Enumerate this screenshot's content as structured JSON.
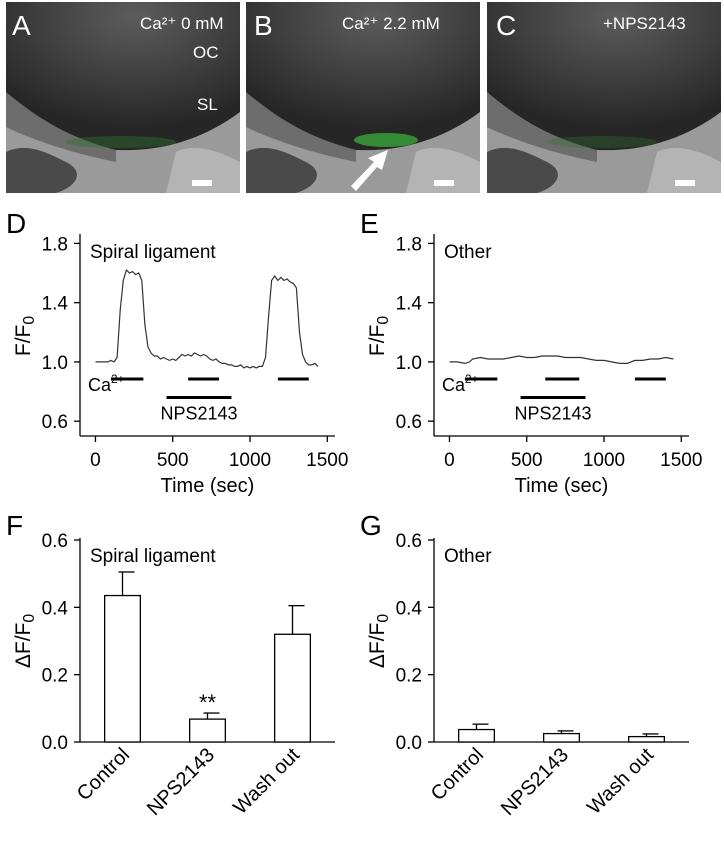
{
  "panels": {
    "A": {
      "letter": "A",
      "condition": "Ca²⁺ 0 mM",
      "label_oc": "OC",
      "label_sl": "SL"
    },
    "B": {
      "letter": "B",
      "condition": "Ca²⁺ 2.2 mM"
    },
    "C": {
      "letter": "C",
      "condition": "+NPS2143"
    },
    "D": {
      "letter": "D"
    },
    "E": {
      "letter": "E"
    },
    "F": {
      "letter": "F"
    },
    "G": {
      "letter": "G"
    }
  },
  "colors": {
    "line": "#333333",
    "green": "#3fcf3f",
    "bar_fill": "#ffffff"
  },
  "chart_data": [
    {
      "id": "D",
      "type": "line",
      "title": "Spiral ligament",
      "xlabel": "Time (sec)",
      "ylabel": "F/F0",
      "xlim": [
        -100,
        1550
      ],
      "ylim": [
        0.5,
        1.85
      ],
      "xticks": [
        0,
        500,
        1000,
        1500
      ],
      "yticks": [
        0.6,
        1.0,
        1.4,
        1.8
      ],
      "ytick_labels": [
        "0.6",
        "1.0",
        "1.4",
        "1.8"
      ],
      "x": [
        0,
        40,
        80,
        100,
        120,
        140,
        160,
        180,
        200,
        220,
        240,
        260,
        280,
        300,
        320,
        340,
        360,
        380,
        400,
        420,
        440,
        460,
        480,
        500,
        520,
        540,
        560,
        580,
        600,
        620,
        640,
        660,
        680,
        700,
        720,
        740,
        760,
        780,
        800,
        820,
        840,
        860,
        880,
        900,
        920,
        940,
        960,
        980,
        1000,
        1020,
        1040,
        1060,
        1080,
        1100,
        1120,
        1140,
        1160,
        1180,
        1200,
        1220,
        1240,
        1260,
        1280,
        1300,
        1320,
        1340,
        1360,
        1380,
        1400,
        1420,
        1440
      ],
      "y": [
        1.0,
        1.0,
        1.0,
        1.01,
        1.0,
        1.03,
        1.35,
        1.55,
        1.62,
        1.6,
        1.61,
        1.59,
        1.6,
        1.55,
        1.25,
        1.1,
        1.06,
        1.04,
        1.04,
        1.02,
        1.03,
        1.02,
        1.01,
        1.02,
        1.01,
        1.03,
        1.05,
        1.04,
        1.05,
        1.04,
        1.06,
        1.05,
        1.04,
        1.05,
        1.04,
        1.02,
        1.01,
        1.02,
        1.0,
        0.99,
        0.99,
        0.98,
        0.98,
        0.97,
        0.97,
        0.98,
        0.96,
        0.97,
        0.96,
        0.97,
        0.96,
        0.97,
        0.97,
        1.03,
        1.3,
        1.55,
        1.58,
        1.55,
        1.57,
        1.55,
        1.56,
        1.54,
        1.53,
        1.5,
        1.2,
        1.05,
        1.0,
        0.98,
        0.98,
        0.99,
        0.97
      ],
      "stimulus_label": "Ca2+",
      "drug_label": "NPS2143",
      "ca_bars": [
        [
          100,
          310
        ],
        [
          600,
          800
        ],
        [
          1180,
          1380
        ]
      ],
      "drug_bar": [
        460,
        880
      ]
    },
    {
      "id": "E",
      "type": "line",
      "title": "Other",
      "xlabel": "Time (sec)",
      "ylabel": "F/F0",
      "xlim": [
        -100,
        1550
      ],
      "ylim": [
        0.5,
        1.85
      ],
      "xticks": [
        0,
        500,
        1000,
        1500
      ],
      "yticks": [
        0.6,
        1.0,
        1.4,
        1.8
      ],
      "ytick_labels": [
        "0.6",
        "1.0",
        "1.4",
        "1.8"
      ],
      "x": [
        0,
        50,
        100,
        130,
        150,
        200,
        250,
        300,
        350,
        400,
        450,
        500,
        550,
        600,
        650,
        700,
        750,
        800,
        850,
        900,
        950,
        1000,
        1050,
        1100,
        1150,
        1200,
        1250,
        1300,
        1350,
        1400,
        1450
      ],
      "y": [
        1.0,
        1.0,
        0.99,
        1.0,
        1.02,
        1.03,
        1.02,
        1.02,
        1.02,
        1.03,
        1.04,
        1.03,
        1.03,
        1.04,
        1.04,
        1.04,
        1.03,
        1.03,
        1.03,
        1.02,
        1.01,
        1.01,
        1.0,
        0.99,
        0.99,
        1.01,
        1.01,
        1.02,
        1.02,
        1.03,
        1.02
      ],
      "stimulus_label": "Ca2+",
      "drug_label": "NPS2143",
      "ca_bars": [
        [
          100,
          310
        ],
        [
          620,
          840
        ],
        [
          1200,
          1400
        ]
      ],
      "drug_bar": [
        460,
        880
      ]
    },
    {
      "id": "F",
      "type": "bar",
      "title": "Spiral ligament",
      "ylabel": "ΔF/F0",
      "ylim": [
        0,
        0.6
      ],
      "yticks": [
        0.0,
        0.2,
        0.4,
        0.6
      ],
      "ytick_labels": [
        "0.0",
        "0.2",
        "0.4",
        "0.6"
      ],
      "categories": [
        "Control",
        "NPS2143",
        "Wash out"
      ],
      "values": [
        0.435,
        0.068,
        0.32
      ],
      "errors": [
        0.07,
        0.018,
        0.085
      ],
      "annotations": [
        "",
        "**",
        ""
      ]
    },
    {
      "id": "G",
      "type": "bar",
      "title": "Other",
      "ylabel": "ΔF/F0",
      "ylim": [
        0,
        0.6
      ],
      "yticks": [
        0.0,
        0.2,
        0.4,
        0.6
      ],
      "ytick_labels": [
        "0.0",
        "0.2",
        "0.4",
        "0.6"
      ],
      "categories": [
        "Control",
        "NPS2143",
        "Wash out"
      ],
      "values": [
        0.037,
        0.025,
        0.016
      ],
      "errors": [
        0.016,
        0.008,
        0.008
      ],
      "annotations": [
        "",
        "",
        ""
      ]
    }
  ]
}
